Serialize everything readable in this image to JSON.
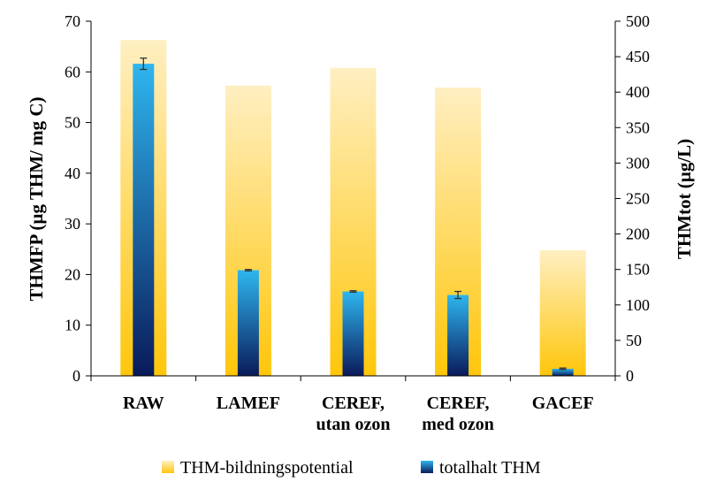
{
  "chart_data": {
    "type": "bar",
    "categories": [
      [
        "RAW"
      ],
      [
        "LAMEF"
      ],
      [
        "CEREF,",
        "utan ozon"
      ],
      [
        "CEREF,",
        "med ozon"
      ],
      [
        "GACEF"
      ]
    ],
    "series": [
      {
        "name": "THM-bildningspotential",
        "axis": "left",
        "values": [
          66.3,
          57.3,
          60.8,
          56.9,
          24.8
        ],
        "colors": [
          "#ffefc2",
          "#ffc60a"
        ]
      },
      {
        "name": "totalhalt THM",
        "axis": "right",
        "values": [
          440,
          149,
          119,
          114,
          10
        ],
        "error": [
          8,
          1,
          1,
          5,
          1
        ],
        "colors": [
          "#2eb6ef",
          "#0a1a5a"
        ]
      }
    ],
    "ylabel": "THMFP (µg THM/ mg C)",
    "ylim": [
      0,
      70
    ],
    "yticks": [
      0,
      10,
      20,
      30,
      40,
      50,
      60,
      70
    ],
    "y2label": "THMtot (µg/L)",
    "y2lim": [
      0,
      500
    ],
    "y2ticks": [
      0,
      50,
      100,
      150,
      200,
      250,
      300,
      350,
      400,
      450,
      500
    ],
    "legend_position": "bottom",
    "grid": false
  }
}
